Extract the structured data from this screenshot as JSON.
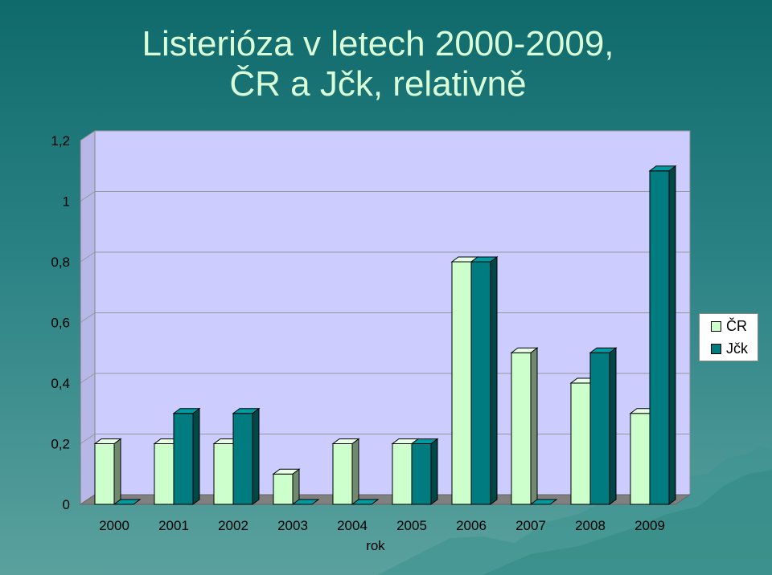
{
  "title_line1": "Listerióza v letech 2000-2009,",
  "title_line2": "ČR a Jčk, relativně",
  "colors": {
    "series1": "#ccffcc",
    "series1_side": "#6f8a6f",
    "series2": "#007b80",
    "series2_side": "#004848",
    "plot_bg": "#ccccff",
    "floor": "#808080"
  },
  "chart_data": {
    "type": "bar",
    "categories": [
      "2000",
      "2001",
      "2002",
      "2003",
      "2004",
      "2005",
      "2006",
      "2007",
      "2008",
      "2009"
    ],
    "series": [
      {
        "name": "ČR",
        "values": [
          0.2,
          0.2,
          0.2,
          0.1,
          0.2,
          0.2,
          0.8,
          0.5,
          0.4,
          0.3
        ]
      },
      {
        "name": "Jčk",
        "values": [
          0,
          0.3,
          0.3,
          0,
          0,
          0.2,
          0.8,
          0,
          0.5,
          1.1
        ]
      }
    ],
    "xlabel": "rok",
    "ylabel": "",
    "ylim": [
      0,
      1.2
    ],
    "yticks": [
      "0",
      "0,2",
      "0,4",
      "0,6",
      "0,8",
      "1",
      "1,2"
    ],
    "grid": true,
    "legend_position": "right"
  }
}
